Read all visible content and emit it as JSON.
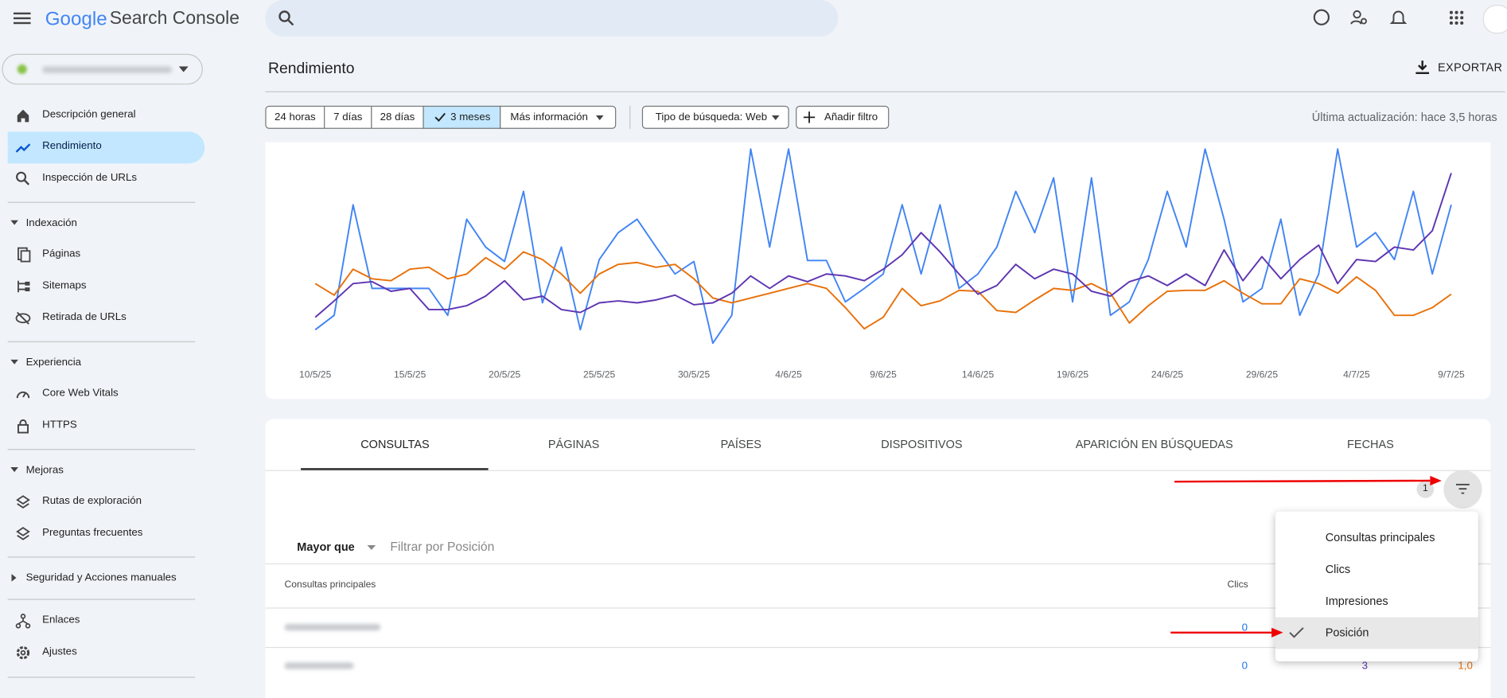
{
  "header": {
    "logo": "Google",
    "product": "Search Console"
  },
  "nav": {
    "main": [
      "Descripción general",
      "Rendimiento",
      "Inspección de URLs"
    ],
    "sections": [
      {
        "title": "Indexación",
        "items": [
          "Páginas",
          "Sitemaps",
          "Retirada de URLs"
        ]
      },
      {
        "title": "Experiencia",
        "items": [
          "Core Web Vitals",
          "HTTPS"
        ]
      },
      {
        "title": "Mejoras",
        "items": [
          "Rutas de exploración",
          "Preguntas frecuentes"
        ]
      },
      {
        "title": "Seguridad y Acciones manuales"
      }
    ],
    "bottom": [
      "Enlaces",
      "Ajustes"
    ]
  },
  "page": {
    "title": "Rendimiento",
    "export": "EXPORTAR",
    "ranges": [
      "24 horas",
      "7 días",
      "28 días",
      "3 meses"
    ],
    "more": "Más información",
    "search_type": "Tipo de búsqueda: Web",
    "add_filter": "Añadir filtro",
    "updated": "Última actualización: hace 3,5 horas"
  },
  "chart_data": {
    "type": "line",
    "ylim": [
      0,
      210
    ],
    "x": [
      "10/5/25",
      null,
      null,
      null,
      null,
      "15/5/25",
      null,
      null,
      null,
      null,
      "20/5/25",
      null,
      null,
      null,
      null,
      "25/5/25",
      null,
      null,
      null,
      null,
      "30/5/25",
      null,
      null,
      null,
      null,
      "4/6/25",
      null,
      null,
      null,
      null,
      "9/6/25",
      null,
      null,
      null,
      null,
      "14/6/25",
      null,
      null,
      null,
      null,
      "19/6/25",
      null,
      null,
      null,
      null,
      "24/6/25",
      null,
      null,
      null,
      null,
      "29/6/25",
      null,
      null,
      null,
      null,
      "4/7/25",
      null,
      null,
      null,
      null,
      "9/7/25"
    ],
    "series": [
      {
        "color": "#4285f4",
        "values": [
          17,
          32,
          147,
          60,
          60,
          60,
          60,
          32,
          132,
          103,
          88,
          161,
          45,
          103,
          17,
          90,
          118,
          132,
          103,
          75,
          88,
          3,
          32,
          205,
          103,
          205,
          89,
          89,
          46,
          60,
          75,
          147,
          75,
          147,
          60,
          75,
          103,
          161,
          118,
          175,
          46,
          175,
          32,
          46,
          90,
          161,
          103,
          205,
          132,
          46,
          60,
          132,
          32,
          75,
          205,
          103,
          118,
          90,
          161,
          75,
          147
        ]
      },
      {
        "color": "#e8710a",
        "values": [
          65,
          53,
          80,
          70,
          68,
          80,
          82,
          70,
          75,
          92,
          80,
          98,
          90,
          75,
          55,
          75,
          85,
          87,
          82,
          85,
          70,
          50,
          45,
          50,
          55,
          60,
          65,
          60,
          40,
          18,
          30,
          60,
          42,
          47,
          58,
          57,
          37,
          35,
          48,
          60,
          58,
          65,
          55,
          24,
          42,
          57,
          58,
          58,
          68,
          55,
          44,
          44,
          70,
          65,
          55,
          72,
          58,
          32,
          32,
          40,
          54
        ]
      },
      {
        "color": "#5e35b1",
        "values": [
          30,
          47,
          65,
          67,
          57,
          60,
          38,
          38,
          42,
          52,
          68,
          48,
          52,
          38,
          35,
          45,
          47,
          45,
          48,
          53,
          43,
          45,
          55,
          73,
          60,
          73,
          67,
          75,
          73,
          68,
          80,
          95,
          118,
          98,
          75,
          54,
          63,
          85,
          70,
          80,
          75,
          57,
          52,
          67,
          73,
          63,
          75,
          63,
          100,
          68,
          93,
          70,
          90,
          105,
          65,
          90,
          88,
          103,
          100,
          120,
          180
        ]
      }
    ]
  },
  "tabs": [
    "CONSULTAS",
    "PÁGINAS",
    "PAÍSES",
    "DISPOSITIVOS",
    "APARICIÓN EN BÚSQUEDAS",
    "FECHAS"
  ],
  "filter": {
    "badge": 1,
    "operator": "Mayor que",
    "placeholder": "Filtrar por Posición"
  },
  "table": {
    "headers": [
      "Consultas principales",
      "Clics"
    ],
    "rows": [
      [
        "0"
      ],
      [
        "0",
        "3",
        "1,0"
      ]
    ]
  },
  "menu": {
    "items": [
      "Consultas principales",
      "Clics",
      "Impresiones",
      "Posición"
    ]
  }
}
